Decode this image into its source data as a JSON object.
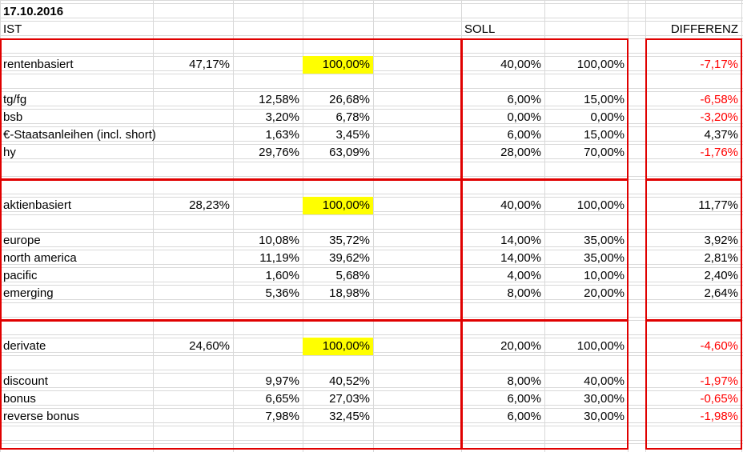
{
  "header": {
    "date": "17.10.2016",
    "ist": "IST",
    "soll": "SOLL",
    "differenz": "DIFFERENZ"
  },
  "highlight_color": "#ffff00",
  "negative_color": "#ff0000",
  "box_color": "#e00000",
  "sections": [
    {
      "summary": {
        "label": "rentenbasiert",
        "share": "47,17%",
        "total": "100,00%",
        "soll_share": "40,00%",
        "soll_total": "100,00%",
        "diff": "-7,17%",
        "diff_negative": true
      },
      "rows": [
        {
          "label": "tg/fg",
          "ist_share": "12,58%",
          "ist_pct": "26,68%",
          "soll_share": "6,00%",
          "soll_pct": "15,00%",
          "diff": "-6,58%",
          "diff_negative": true
        },
        {
          "label": "bsb",
          "ist_share": "3,20%",
          "ist_pct": "6,78%",
          "soll_share": "0,00%",
          "soll_pct": "0,00%",
          "diff": "-3,20%",
          "diff_negative": true
        },
        {
          "label": "€-Staatsanleihen (incl. short)",
          "ist_share": "1,63%",
          "ist_pct": "3,45%",
          "soll_share": "6,00%",
          "soll_pct": "15,00%",
          "diff": "4,37%",
          "diff_negative": false
        },
        {
          "label": "hy",
          "ist_share": "29,76%",
          "ist_pct": "63,09%",
          "soll_share": "28,00%",
          "soll_pct": "70,00%",
          "diff": "-1,76%",
          "diff_negative": true
        }
      ]
    },
    {
      "summary": {
        "label": "aktienbasiert",
        "share": "28,23%",
        "total": "100,00%",
        "soll_share": "40,00%",
        "soll_total": "100,00%",
        "diff": "11,77%",
        "diff_negative": false
      },
      "rows": [
        {
          "label": "europe",
          "ist_share": "10,08%",
          "ist_pct": "35,72%",
          "soll_share": "14,00%",
          "soll_pct": "35,00%",
          "diff": "3,92%",
          "diff_negative": false
        },
        {
          "label": "north america",
          "ist_share": "11,19%",
          "ist_pct": "39,62%",
          "soll_share": "14,00%",
          "soll_pct": "35,00%",
          "diff": "2,81%",
          "diff_negative": false
        },
        {
          "label": "pacific",
          "ist_share": "1,60%",
          "ist_pct": "5,68%",
          "soll_share": "4,00%",
          "soll_pct": "10,00%",
          "diff": "2,40%",
          "diff_negative": false
        },
        {
          "label": "emerging",
          "ist_share": "5,36%",
          "ist_pct": "18,98%",
          "soll_share": "8,00%",
          "soll_pct": "20,00%",
          "diff": "2,64%",
          "diff_negative": false
        }
      ]
    },
    {
      "summary": {
        "label": "derivate",
        "share": "24,60%",
        "total": "100,00%",
        "soll_share": "20,00%",
        "soll_total": "100,00%",
        "diff": "-4,60%",
        "diff_negative": true
      },
      "rows": [
        {
          "label": "discount",
          "ist_share": "9,97%",
          "ist_pct": "40,52%",
          "soll_share": "8,00%",
          "soll_pct": "40,00%",
          "diff": "-1,97%",
          "diff_negative": true
        },
        {
          "label": "bonus",
          "ist_share": "6,65%",
          "ist_pct": "27,03%",
          "soll_share": "6,00%",
          "soll_pct": "30,00%",
          "diff": "-0,65%",
          "diff_negative": true
        },
        {
          "label": "reverse bonus",
          "ist_share": "7,98%",
          "ist_pct": "32,45%",
          "soll_share": "6,00%",
          "soll_pct": "30,00%",
          "diff": "-1,98%",
          "diff_negative": true
        }
      ]
    }
  ]
}
